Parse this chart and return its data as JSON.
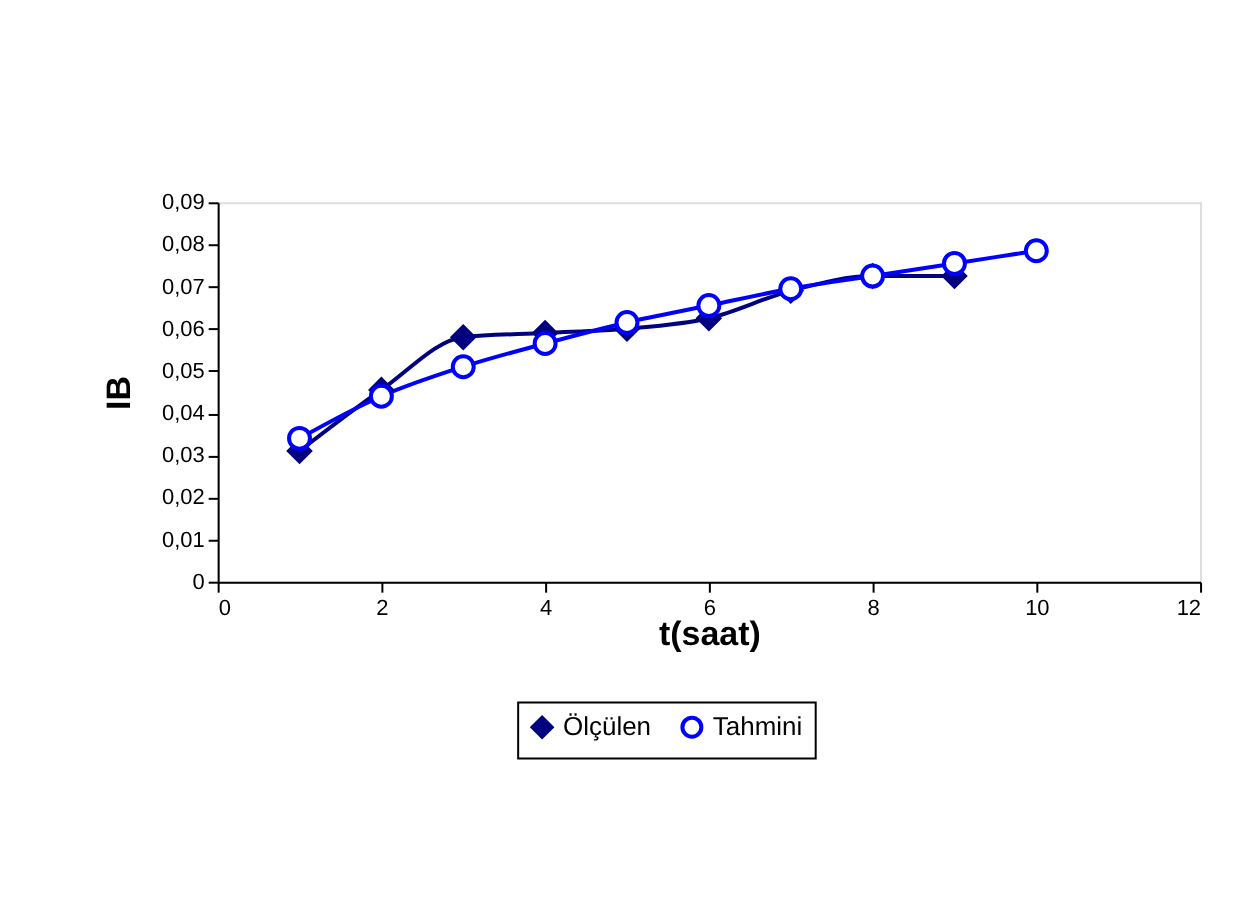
{
  "chart_data": {
    "type": "line",
    "xlabel": "t(saat)",
    "ylabel": "IB",
    "series": [
      {
        "name": "Ölçülen",
        "color": "#000080",
        "marker": "diamond",
        "x": [
          1,
          2,
          3,
          4,
          5,
          6,
          7,
          8,
          9
        ],
        "values": [
          0.031,
          0.0455,
          0.058,
          0.059,
          0.06,
          0.0625,
          0.069,
          0.0725,
          0.0725
        ]
      },
      {
        "name": "Tahmini",
        "color": "#0000ff",
        "marker": "circle",
        "x": [
          1,
          2,
          3,
          4,
          5,
          6,
          7,
          8,
          9,
          10
        ],
        "values": [
          0.034,
          0.044,
          0.051,
          0.0565,
          0.0615,
          0.0655,
          0.0695,
          0.0725,
          0.0755,
          0.0785
        ]
      }
    ],
    "xlim": [
      0,
      12
    ],
    "xticks": [
      0,
      2,
      4,
      6,
      8,
      10,
      12
    ],
    "ylim": [
      0,
      0.09
    ],
    "yticks": [
      0,
      {
        "value": 0.01,
        "label": "0,01"
      },
      {
        "value": 0.02,
        "label": "0,02"
      },
      {
        "value": 0.03,
        "label": "0,03"
      },
      {
        "value": 0.04,
        "label": "0,04"
      },
      {
        "value": 0.05,
        "label": "0,05"
      },
      {
        "value": 0.06,
        "label": "0,06"
      },
      {
        "value": 0.07,
        "label": "0,07"
      },
      {
        "value": 0.08,
        "label": "0,08"
      },
      {
        "value": 0.09,
        "label": "0,09"
      }
    ],
    "grid": false,
    "legend": "bottom",
    "line_style": "solid"
  }
}
